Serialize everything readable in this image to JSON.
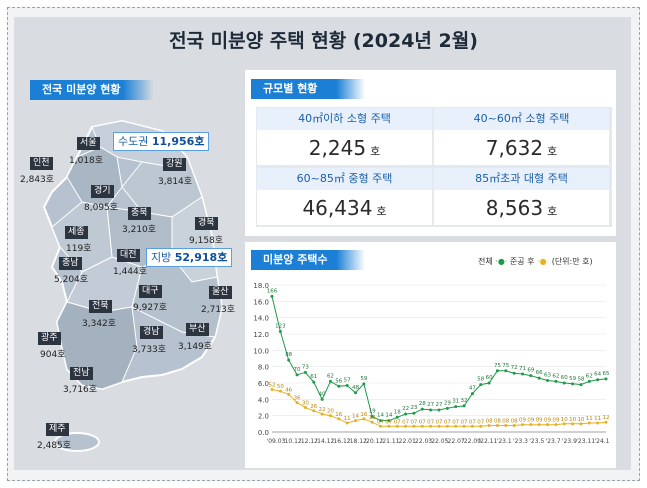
{
  "title": "전국 미분양 주택 현황  (2024년 2월)",
  "map_section": {
    "label": "전국 미분양 현황",
    "capital_callout": {
      "label": "수도권",
      "value": "11,956호"
    },
    "region_callout": {
      "label": "지방",
      "value": "52,918호"
    },
    "regions": [
      {
        "name": "서울",
        "value": "1,018호"
      },
      {
        "name": "인천",
        "value": "2,843호"
      },
      {
        "name": "강원",
        "value": "3,814호"
      },
      {
        "name": "경기",
        "value": "8,095호"
      },
      {
        "name": "충북",
        "value": "3,210호"
      },
      {
        "name": "경북",
        "value": "9,158호"
      },
      {
        "name": "세종",
        "value": "119호"
      },
      {
        "name": "대전",
        "value": "1,444호"
      },
      {
        "name": "충남",
        "value": "5,204호"
      },
      {
        "name": "대구",
        "value": "9,927호"
      },
      {
        "name": "울산",
        "value": "2,713호"
      },
      {
        "name": "전북",
        "value": "3,342호"
      },
      {
        "name": "경남",
        "value": "3,733호"
      },
      {
        "name": "부산",
        "value": "3,149호"
      },
      {
        "name": "광주",
        "value": "904호"
      },
      {
        "name": "전남",
        "value": "3,716호"
      },
      {
        "name": "제주",
        "value": "2,485호"
      }
    ]
  },
  "scale_section": {
    "label": "규모별 현황",
    "cells": [
      {
        "header": "40㎡이하 소형 주택",
        "value": "2,245",
        "unit": "호"
      },
      {
        "header": "40~60㎡ 소형 주택",
        "value": "7,632",
        "unit": "호"
      },
      {
        "header": "60~85㎡ 중형 주택",
        "value": "46,434",
        "unit": "호"
      },
      {
        "header": "85㎡초과 대형 주택",
        "value": "8,563",
        "unit": "호"
      }
    ]
  },
  "trend_section": {
    "label": "미분양 주택수",
    "legend_total": "전체",
    "legend_completed": "준공 후",
    "legend_unit": "(단위:만 호)"
  },
  "chart_data": {
    "type": "line",
    "ylim": [
      0,
      18
    ],
    "yticks": [
      "0.0",
      "2.0",
      "4.0",
      "6.0",
      "8.0",
      "10.0",
      "12.0",
      "14.0",
      "16.0",
      "18.0"
    ],
    "xticks": [
      "'09.03",
      "'10.12",
      "'12.12",
      "'14.12",
      "'16.12",
      "'18.12",
      "'20.12",
      "'21.11",
      "'22.01",
      "'22.03",
      "'22.05",
      "'22.07",
      "'22.09",
      "'22.11",
      "'23.1",
      "'23.3",
      "'23.5",
      "'23.7",
      "'23.9",
      "'23.11",
      "'24.1"
    ],
    "series": [
      {
        "name": "전체",
        "color": "#1f9a4a",
        "points": [
          [
            0,
            16.6
          ],
          [
            1,
            12.3
          ],
          [
            2,
            8.8
          ],
          [
            3,
            7.0
          ],
          [
            4,
            7.3
          ],
          [
            5,
            6.1
          ],
          [
            6,
            4.0
          ],
          [
            7,
            6.2
          ],
          [
            8,
            5.6
          ],
          [
            9,
            5.7
          ],
          [
            10,
            4.8
          ],
          [
            11,
            5.9
          ],
          [
            12,
            1.9
          ],
          [
            13,
            1.4
          ],
          [
            14,
            1.4
          ],
          [
            15,
            1.8
          ],
          [
            16,
            2.2
          ],
          [
            17,
            2.3
          ],
          [
            18,
            2.8
          ],
          [
            19,
            2.7
          ],
          [
            20,
            2.7
          ],
          [
            21,
            2.9
          ],
          [
            22,
            3.1
          ],
          [
            23,
            3.2
          ],
          [
            24,
            4.7
          ],
          [
            25,
            5.8
          ],
          [
            26,
            6.0
          ],
          [
            27,
            7.5
          ],
          [
            28,
            7.5
          ],
          [
            29,
            7.2
          ],
          [
            30,
            7.1
          ],
          [
            31,
            6.9
          ],
          [
            32,
            6.6
          ],
          [
            33,
            6.3
          ],
          [
            34,
            6.2
          ],
          [
            35,
            6.0
          ],
          [
            36,
            5.9
          ],
          [
            37,
            5.8
          ],
          [
            38,
            6.2
          ],
          [
            39,
            6.4
          ],
          [
            40,
            6.5
          ]
        ],
        "labels": [
          [
            0,
            "166"
          ],
          [
            1,
            "123"
          ],
          [
            2,
            "88"
          ],
          [
            3,
            "70"
          ],
          [
            4,
            "73"
          ],
          [
            5,
            "61"
          ],
          [
            6,
            "40"
          ],
          [
            7,
            "62"
          ],
          [
            8,
            "56"
          ],
          [
            9,
            "57"
          ],
          [
            10,
            "48"
          ],
          [
            11,
            "59"
          ],
          [
            12,
            "19"
          ],
          [
            13,
            "14"
          ],
          [
            14,
            "14"
          ],
          [
            15,
            "18"
          ],
          [
            16,
            "22"
          ],
          [
            17,
            "23"
          ],
          [
            18,
            "28"
          ],
          [
            19,
            "27"
          ],
          [
            20,
            "27"
          ],
          [
            21,
            "29"
          ],
          [
            22,
            "31"
          ],
          [
            23,
            "32"
          ],
          [
            24,
            "47"
          ],
          [
            25,
            "58"
          ],
          [
            26,
            "60"
          ],
          [
            27,
            "75"
          ],
          [
            28,
            "75"
          ],
          [
            29,
            "72"
          ],
          [
            30,
            "71"
          ],
          [
            31,
            "69"
          ],
          [
            32,
            "66"
          ],
          [
            33,
            "63"
          ],
          [
            34,
            "62"
          ],
          [
            35,
            "60"
          ],
          [
            36,
            "59"
          ],
          [
            37,
            "58"
          ],
          [
            38,
            "62"
          ],
          [
            39,
            "64"
          ],
          [
            40,
            "65"
          ]
        ]
      },
      {
        "name": "준공 후",
        "color": "#e8b024",
        "points": [
          [
            0,
            5.2
          ],
          [
            1,
            5.0
          ],
          [
            2,
            4.6
          ],
          [
            3,
            3.6
          ],
          [
            4,
            3.0
          ],
          [
            5,
            2.6
          ],
          [
            6,
            2.2
          ],
          [
            7,
            2.0
          ],
          [
            8,
            1.6
          ],
          [
            9,
            1.1
          ],
          [
            10,
            1.4
          ],
          [
            11,
            1.6
          ],
          [
            12,
            1.2
          ],
          [
            13,
            0.7
          ],
          [
            14,
            0.7
          ],
          [
            15,
            0.7
          ],
          [
            16,
            0.7
          ],
          [
            17,
            0.7
          ],
          [
            18,
            0.7
          ],
          [
            19,
            0.7
          ],
          [
            20,
            0.7
          ],
          [
            21,
            0.7
          ],
          [
            22,
            0.7
          ],
          [
            23,
            0.7
          ],
          [
            24,
            0.7
          ],
          [
            25,
            0.7
          ],
          [
            26,
            0.8
          ],
          [
            27,
            0.8
          ],
          [
            28,
            0.8
          ],
          [
            29,
            0.8
          ],
          [
            30,
            0.9
          ],
          [
            31,
            0.9
          ],
          [
            32,
            0.9
          ],
          [
            33,
            0.9
          ],
          [
            34,
            0.9
          ],
          [
            35,
            1.0
          ],
          [
            36,
            1.0
          ],
          [
            37,
            1.0
          ],
          [
            38,
            1.1
          ],
          [
            39,
            1.1
          ],
          [
            40,
            1.2
          ]
        ],
        "labels": [
          [
            0,
            "52"
          ],
          [
            1,
            "50"
          ],
          [
            2,
            "46"
          ],
          [
            3,
            "36"
          ],
          [
            4,
            "30"
          ],
          [
            5,
            "26"
          ],
          [
            6,
            "22"
          ],
          [
            7,
            "20"
          ],
          [
            8,
            "16"
          ],
          [
            9,
            "11"
          ],
          [
            10,
            "14"
          ],
          [
            11,
            "16"
          ],
          [
            12,
            "12"
          ],
          [
            13,
            "07"
          ],
          [
            14,
            "07"
          ],
          [
            15,
            "07"
          ],
          [
            16,
            "07"
          ],
          [
            17,
            "07"
          ],
          [
            18,
            "07"
          ],
          [
            19,
            "07"
          ],
          [
            20,
            "07"
          ],
          [
            21,
            "07"
          ],
          [
            22,
            "07"
          ],
          [
            23,
            "07"
          ],
          [
            24,
            "07"
          ],
          [
            25,
            "07"
          ],
          [
            26,
            "08"
          ],
          [
            27,
            "08"
          ],
          [
            28,
            "08"
          ],
          [
            29,
            "08"
          ],
          [
            30,
            "09"
          ],
          [
            31,
            "09"
          ],
          [
            32,
            "09"
          ],
          [
            33,
            "09"
          ],
          [
            34,
            "09"
          ],
          [
            35,
            "10"
          ],
          [
            36,
            "10"
          ],
          [
            37,
            "10"
          ],
          [
            38,
            "11"
          ],
          [
            39,
            "11"
          ],
          [
            40,
            "12"
          ]
        ]
      }
    ]
  }
}
